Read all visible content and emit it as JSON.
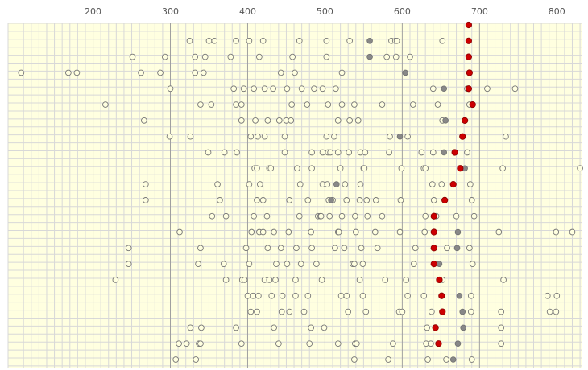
{
  "chart_data": {
    "type": "scatter",
    "title": "",
    "xlabel": "",
    "ylabel": "",
    "xlim": [
      90,
      832
    ],
    "x_ticks": [
      200,
      300,
      400,
      500,
      600,
      700,
      800
    ],
    "x_tick_labels": [
      "200",
      "300",
      "400",
      "500",
      "600",
      "700",
      "800"
    ],
    "grid": true,
    "legend": "none",
    "colors": {
      "background": "#ffffe0",
      "grid_minor": "#d8d8d8",
      "grid_major": "#a0a0a0",
      "open_marker_stroke": "#777777",
      "gray_marker": "#888888",
      "highlight_marker": "#cc0000",
      "highlight_stroke": "#880000"
    },
    "rows": [
      {
        "highlight": 686,
        "gray": [],
        "open": []
      },
      {
        "highlight": 686,
        "gray": [
          558
        ],
        "open": [
          325,
          350,
          357,
          385,
          402,
          420,
          467,
          502,
          532,
          586,
          591,
          593,
          652
        ]
      },
      {
        "highlight": 686,
        "gray": [
          558
        ],
        "open": [
          251,
          293,
          332,
          345,
          378,
          415,
          458,
          502,
          580,
          592,
          610
        ]
      },
      {
        "highlight": 687,
        "gray": [
          604
        ],
        "open": [
          107,
          168,
          179,
          262,
          287,
          332,
          343,
          443,
          461,
          522
        ]
      },
      {
        "highlight": 686,
        "gray": [
          654
        ],
        "open": [
          300,
          382,
          395,
          408,
          422,
          433,
          451,
          470,
          486,
          497,
          514,
          640,
          684,
          710,
          746
        ]
      },
      {
        "highlight": 691,
        "gray": [],
        "open": [
          216,
          339,
          353,
          385,
          392,
          457,
          477,
          504,
          522,
          538,
          574,
          614,
          646,
          687
        ]
      },
      {
        "highlight": 681,
        "gray": [
          656
        ],
        "open": [
          266,
          392,
          410,
          426,
          441,
          450,
          456,
          517,
          532,
          543,
          652
        ]
      },
      {
        "highlight": 678,
        "gray": [
          597
        ],
        "open": [
          299,
          326,
          404,
          413,
          422,
          448,
          502,
          512,
          584,
          607,
          734
        ]
      },
      {
        "highlight": 668,
        "gray": [
          654
        ],
        "open": [
          349,
          370,
          386,
          448,
          483,
          497,
          504,
          507,
          517,
          531,
          546,
          552,
          583,
          625,
          640,
          684
        ]
      },
      {
        "highlight": 675,
        "gray": [
          681
        ],
        "open": [
          409,
          412,
          428,
          430,
          464,
          483,
          520,
          550,
          551,
          599,
          628,
          630,
          730,
          830
        ]
      },
      {
        "highlight": 666,
        "gray": [
          515
        ],
        "open": [
          268,
          361,
          402,
          416,
          468,
          497,
          503,
          526,
          546,
          639,
          651,
          688
        ]
      },
      {
        "highlight": 655,
        "gray": [
          508
        ],
        "open": [
          268,
          364,
          412,
          420,
          454,
          478,
          505,
          510,
          528,
          545,
          554,
          566,
          598,
          641,
          690
        ]
      },
      {
        "highlight": 641,
        "gray": [],
        "open": [
          354,
          372,
          408,
          425,
          467,
          491,
          494,
          495,
          506,
          522,
          539,
          555,
          574,
          630,
          644,
          670,
          693
        ]
      },
      {
        "highlight": 641,
        "gray": [
          672
        ],
        "open": [
          312,
          405,
          415,
          420,
          434,
          453,
          482,
          517,
          518,
          540,
          565,
          597,
          629,
          725,
          799,
          820
        ]
      },
      {
        "highlight": 641,
        "gray": [
          671
        ],
        "open": [
          246,
          339,
          398,
          426,
          443,
          463,
          483,
          513,
          525,
          547,
          568,
          617,
          658,
          687
        ]
      },
      {
        "highlight": 641,
        "gray": [
          648
        ],
        "open": [
          246,
          336,
          369,
          402,
          437,
          451,
          469,
          489,
          536,
          538,
          549,
          615,
          691
        ]
      },
      {
        "highlight": 648,
        "gray": [],
        "open": [
          229,
          372,
          393,
          396,
          422,
          428,
          436,
          462,
          496,
          545,
          578,
          605,
          652,
          731
        ]
      },
      {
        "highlight": 651,
        "gray": [
          674
        ],
        "open": [
          400,
          407,
          414,
          431,
          445,
          462,
          478,
          521,
          528,
          549,
          607,
          628,
          689,
          788,
          800
        ]
      },
      {
        "highlight": 652,
        "gray": [
          678
        ],
        "open": [
          404,
          412,
          444,
          454,
          473,
          530,
          553,
          596,
          600,
          638,
          689,
          728,
          791,
          799
        ]
      },
      {
        "highlight": 643,
        "gray": [
          679
        ],
        "open": [
          326,
          340,
          385,
          434,
          482,
          499,
          632,
          728
        ]
      },
      {
        "highlight": 647,
        "gray": [
          672
        ],
        "open": [
          311,
          321,
          337,
          339,
          392,
          440,
          480,
          517,
          539,
          541,
          588,
          631,
          637,
          728
        ]
      },
      {
        "highlight": null,
        "gray": [
          666
        ],
        "open": [
          307,
          333,
          538,
          582,
          633,
          657,
          690
        ]
      }
    ]
  }
}
